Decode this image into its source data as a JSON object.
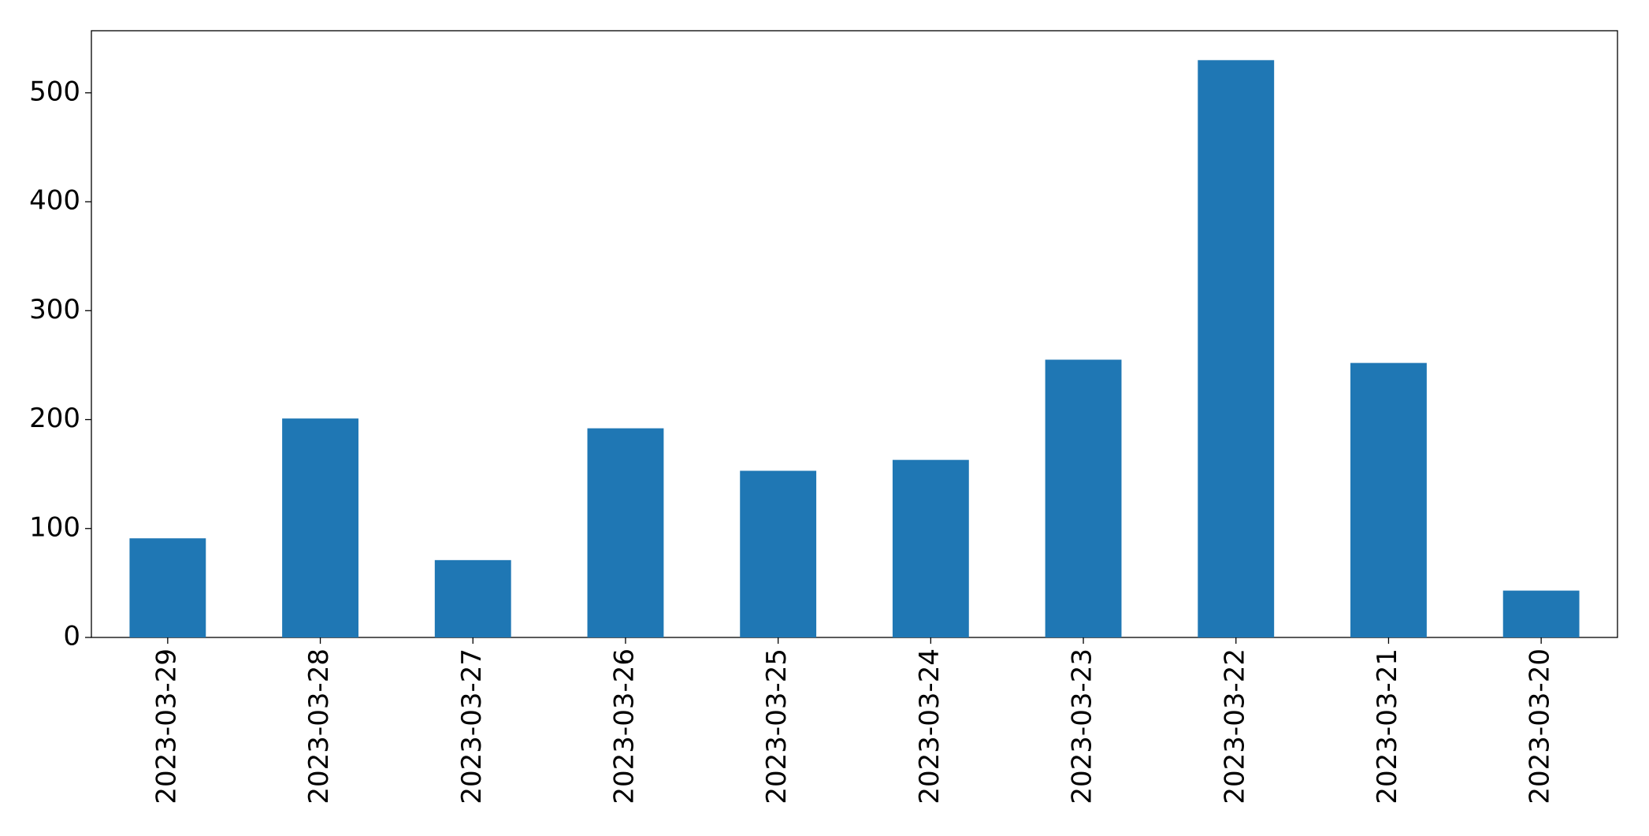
{
  "chart_data": {
    "type": "bar",
    "categories": [
      "2023-03-29",
      "2023-03-28",
      "2023-03-27",
      "2023-03-26",
      "2023-03-25",
      "2023-03-24",
      "2023-03-23",
      "2023-03-22",
      "2023-03-21",
      "2023-03-20"
    ],
    "values": [
      91,
      201,
      71,
      192,
      153,
      163,
      255,
      530,
      252,
      43
    ],
    "color": "#1f77b4",
    "ylim": [
      0,
      557
    ],
    "yticks": [
      0,
      100,
      200,
      300,
      400,
      500
    ],
    "grid": false
  }
}
